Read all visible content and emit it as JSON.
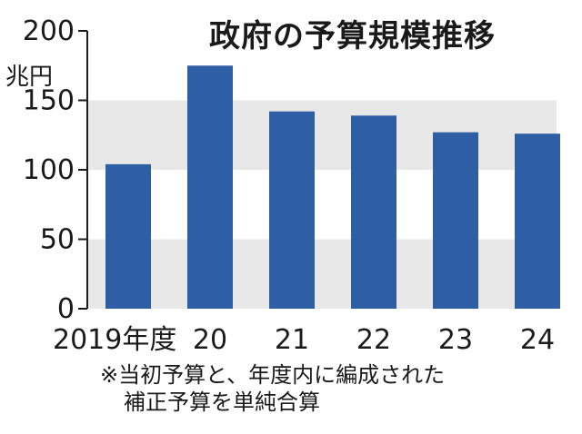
{
  "chart_data": {
    "type": "bar",
    "title": "政府の予算規模推移",
    "unit_label": "兆円",
    "categories": [
      "2019年度",
      "20",
      "21",
      "22",
      "23",
      "24"
    ],
    "values": [
      104,
      175,
      142,
      139,
      127,
      126
    ],
    "ylim": [
      0,
      200
    ],
    "yticks": [
      0,
      50,
      100,
      150,
      200
    ],
    "grid_bands": [
      [
        0,
        50
      ],
      [
        100,
        150
      ]
    ],
    "colors": {
      "bar": "#2e5fa4",
      "band": "#e8e8e8",
      "axis": "#1a1a1a"
    },
    "note": [
      "※当初予算と、年度内に編成された",
      "補正予算を単純合算"
    ],
    "legend": "none"
  }
}
